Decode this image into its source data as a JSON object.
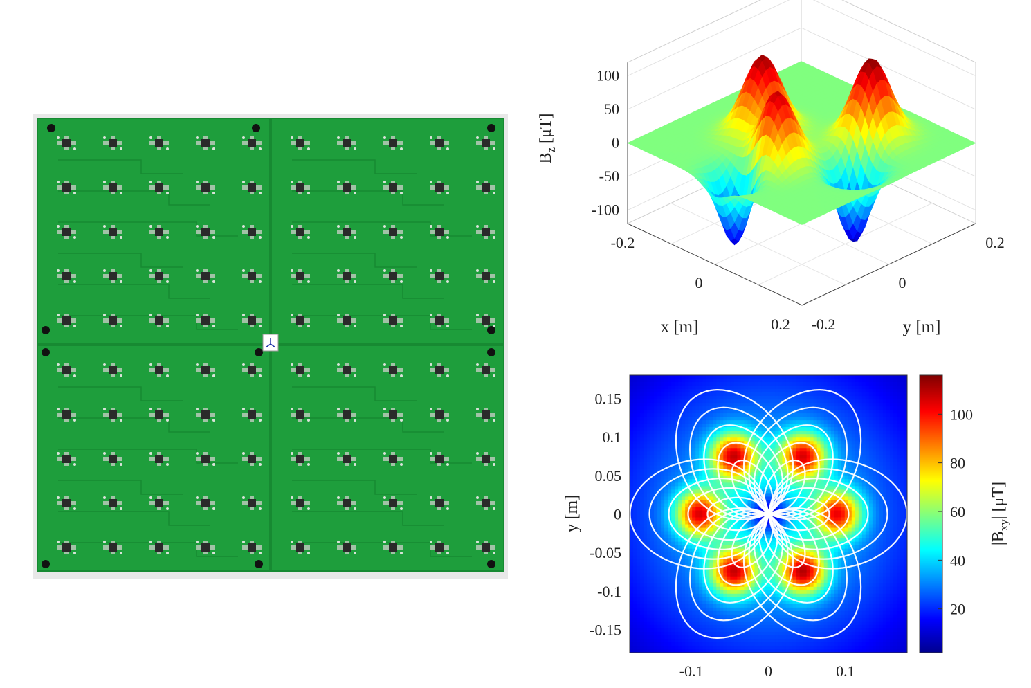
{
  "photo": {
    "description_name": "pcb-coil-array-photo",
    "board_color": "#1e9e3c",
    "board_color_dark": "#178a32",
    "panels": 4,
    "pads_per_panel_row": 5,
    "pads_per_panel_col": 5
  },
  "chart_data": [
    {
      "type": "surface",
      "zlabel": "B_z [μT]",
      "zlabel_main": "B",
      "zlabel_sub": "z",
      "zlabel_unit": "[μT]",
      "xlabel": "x [m]",
      "ylabel": "y [m]",
      "z_ticks": [
        "100",
        "50",
        "0",
        "-50",
        "-100"
      ],
      "x_ticks": [
        "-0.2",
        "0",
        "0.2"
      ],
      "y_ticks": [
        "-0.2",
        "0",
        "0.2"
      ],
      "zlim": [
        -120,
        120
      ],
      "xlim": [
        -0.2,
        0.2
      ],
      "ylim": [
        -0.2,
        0.2
      ],
      "peaks": [
        {
          "x": -0.07,
          "y": -0.02,
          "z": 115
        },
        {
          "x": 0.07,
          "y": 0.09,
          "z": 120
        },
        {
          "x": 0.02,
          "y": -0.08,
          "z": 108
        }
      ],
      "troughs": [
        {
          "x": 0.0,
          "y": -0.15,
          "z": -115
        },
        {
          "x": 0.12,
          "y": 0.0,
          "z": -112
        }
      ],
      "colormap": "jet",
      "grid": true
    },
    {
      "type": "heatmap",
      "ylabel": "y [m]",
      "xlabel": "x [m]",
      "x_ticks": [
        "-0.1",
        "0",
        "0.1"
      ],
      "y_ticks": [
        "0.15",
        "0.1",
        "0.05",
        "0",
        "-0.05",
        "-0.1",
        "-0.15"
      ],
      "xlim": [
        -0.18,
        0.18
      ],
      "ylim": [
        -0.18,
        0.18
      ],
      "colorbar_label": "|B_xy| [μT]",
      "colorbar_main": "|B",
      "colorbar_sub": "xy",
      "colorbar_unit": "| [μT]",
      "colorbar_ticks": [
        "100",
        "80",
        "60",
        "40",
        "20"
      ],
      "clim": [
        2,
        116
      ],
      "colormap": "jet",
      "streamlines": true,
      "lobes": [
        {
          "x": -0.09,
          "y": 0.0,
          "value": 112
        },
        {
          "x": 0.09,
          "y": 0.0,
          "value": 110
        },
        {
          "x": -0.045,
          "y": 0.075,
          "value": 114
        },
        {
          "x": 0.045,
          "y": 0.075,
          "value": 112
        },
        {
          "x": -0.045,
          "y": -0.075,
          "value": 114
        },
        {
          "x": 0.045,
          "y": -0.075,
          "value": 116
        }
      ]
    }
  ]
}
